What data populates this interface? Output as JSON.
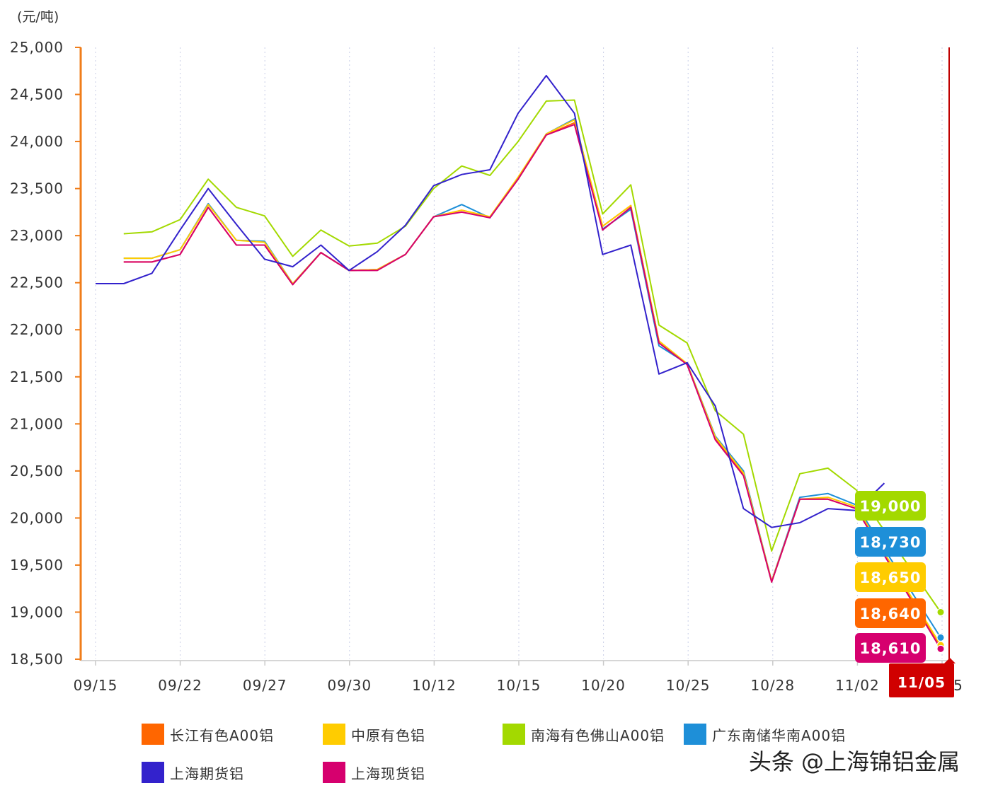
{
  "unit_label": "(元/吨)",
  "watermark": "头条 @上海锦铝金属",
  "chart_data": {
    "type": "line",
    "ylim": [
      18500,
      25000
    ],
    "yticks": [
      18500,
      19000,
      19500,
      20000,
      20500,
      21000,
      21500,
      22000,
      22500,
      23000,
      23500,
      24000,
      24500,
      25000
    ],
    "ytick_labels": [
      "18,500",
      "19,000",
      "19,500",
      "20,000",
      "20,500",
      "21,000",
      "21,500",
      "22,000",
      "22,500",
      "23,000",
      "23,500",
      "24,000",
      "24,500",
      "25,000"
    ],
    "x_labels": [
      "09/15",
      "09/22",
      "09/27",
      "09/30",
      "10/12",
      "10/15",
      "10/20",
      "10/25",
      "10/28",
      "11/02",
      "5"
    ],
    "crosshair_label": "11/05",
    "legend_position": "bottom",
    "series": [
      {
        "name": "长江有色A00铝",
        "color": "#ff6600",
        "end_label": "18,640",
        "values": [
          null,
          22720,
          22720,
          22800,
          23300,
          22900,
          22900,
          22480,
          22820,
          22630,
          22640,
          22800,
          23200,
          23270,
          23200,
          23600,
          24070,
          24200,
          23100,
          23320,
          21880,
          21630,
          20850,
          20470,
          19320,
          20200,
          20200,
          20100,
          null,
          null,
          18640
        ]
      },
      {
        "name": "中原有色铝",
        "color": "#ffcc00",
        "end_label": "18,650",
        "values": [
          null,
          22760,
          22760,
          22850,
          23330,
          22950,
          22930,
          22490,
          22820,
          22630,
          22640,
          22800,
          23200,
          23270,
          23200,
          23620,
          24080,
          24230,
          23100,
          23320,
          21880,
          21640,
          20860,
          20480,
          19330,
          20200,
          20220,
          20120,
          null,
          null,
          18650
        ]
      },
      {
        "name": "南海有色佛山A00铝",
        "color": "#a3d900",
        "end_label": "19,000",
        "values": [
          null,
          23020,
          23040,
          23170,
          23600,
          23300,
          23210,
          22780,
          23060,
          22890,
          22920,
          23100,
          23500,
          23740,
          23640,
          24000,
          24430,
          24440,
          23230,
          23540,
          22050,
          21860,
          21140,
          20890,
          19650,
          20470,
          20530,
          20300,
          null,
          null,
          19000
        ]
      },
      {
        "name": "广东南储华南A00铝",
        "color": "#1e8fd8",
        "end_label": "18,730",
        "values": [
          null,
          22760,
          22760,
          22850,
          23340,
          22950,
          22940,
          22490,
          22820,
          22630,
          22640,
          22800,
          23200,
          23330,
          23190,
          23600,
          24080,
          24240,
          23070,
          23280,
          21830,
          21640,
          20870,
          20500,
          19330,
          20220,
          20260,
          20140,
          null,
          null,
          18730
        ]
      },
      {
        "name": "上海期货铝",
        "color": "#3322cc",
        "end_label": "",
        "values": [
          22490,
          22490,
          22600,
          23060,
          23500,
          23120,
          22750,
          22670,
          22900,
          22630,
          22830,
          23110,
          23530,
          23650,
          23700,
          24300,
          24700,
          24300,
          22800,
          22900,
          21530,
          21650,
          21190,
          20100,
          19900,
          19950,
          20100,
          20080,
          20370,
          null,
          null
        ]
      },
      {
        "name": "上海现货铝",
        "color": "#d6006e",
        "end_label": "18,610",
        "values": [
          null,
          22720,
          22720,
          22800,
          23300,
          22900,
          22900,
          22480,
          22820,
          22630,
          22630,
          22800,
          23200,
          23250,
          23190,
          23600,
          24070,
          24180,
          23060,
          23300,
          21860,
          21630,
          20830,
          20450,
          19320,
          20200,
          20200,
          20100,
          null,
          null,
          18610
        ]
      }
    ]
  }
}
